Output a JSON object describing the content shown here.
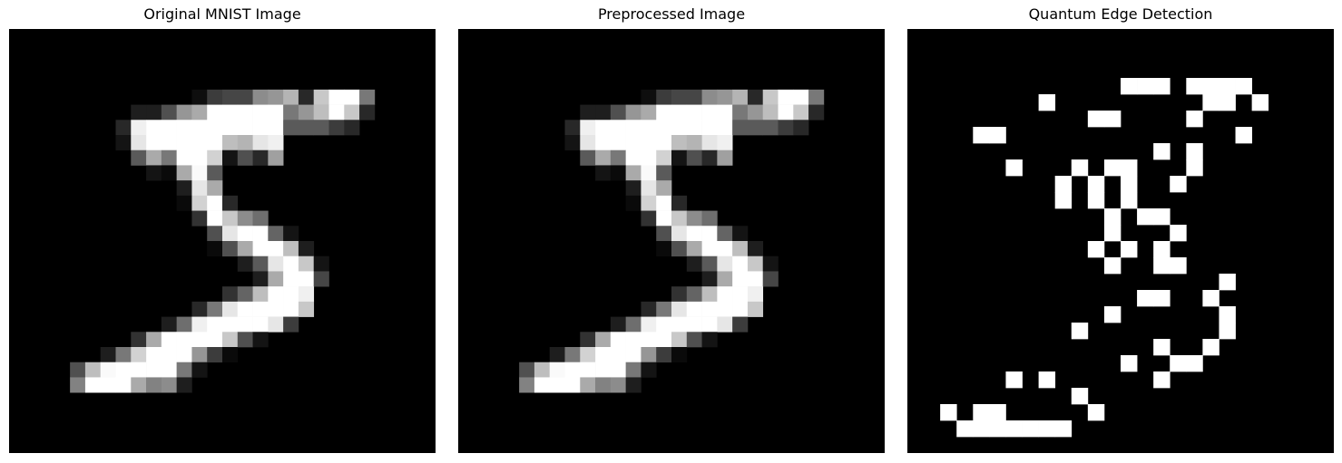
{
  "panels": [
    {
      "title": "Original MNIST Image",
      "kind": "grayscale",
      "grid_size": 28,
      "pixels": [
        [
          4,
          12,
          14,
          0
        ],
        [
          4,
          13,
          60,
          0
        ],
        [
          4,
          14,
          70,
          0
        ],
        [
          4,
          15,
          70,
          0
        ],
        [
          4,
          16,
          140,
          0
        ],
        [
          4,
          17,
          150,
          0
        ],
        [
          4,
          18,
          180,
          0
        ],
        [
          4,
          19,
          40,
          0
        ],
        [
          4,
          20,
          200,
          0
        ],
        [
          4,
          21,
          255,
          0
        ],
        [
          4,
          22,
          255,
          0
        ],
        [
          4,
          23,
          120,
          0
        ],
        [
          5,
          8,
          30,
          0
        ],
        [
          5,
          9,
          30,
          0
        ],
        [
          5,
          10,
          80,
          0
        ],
        [
          5,
          11,
          150,
          0
        ],
        [
          5,
          12,
          170,
          0
        ],
        [
          5,
          13,
          255,
          0
        ],
        [
          5,
          14,
          255,
          0
        ],
        [
          5,
          15,
          255,
          0
        ],
        [
          5,
          16,
          255,
          0
        ],
        [
          5,
          17,
          255,
          0
        ],
        [
          5,
          18,
          120,
          0
        ],
        [
          5,
          19,
          150,
          0
        ],
        [
          5,
          20,
          190,
          0
        ],
        [
          5,
          21,
          255,
          0
        ],
        [
          5,
          22,
          200,
          0
        ],
        [
          5,
          23,
          40,
          0
        ],
        [
          6,
          7,
          40,
          0
        ],
        [
          6,
          8,
          240,
          0
        ],
        [
          6,
          9,
          255,
          0
        ],
        [
          6,
          10,
          255,
          0
        ],
        [
          6,
          11,
          255,
          0
        ],
        [
          6,
          12,
          255,
          0
        ],
        [
          6,
          13,
          255,
          0
        ],
        [
          6,
          14,
          255,
          0
        ],
        [
          6,
          15,
          255,
          0
        ],
        [
          6,
          16,
          255,
          0
        ],
        [
          6,
          17,
          255,
          0
        ],
        [
          6,
          18,
          90,
          0
        ],
        [
          6,
          19,
          90,
          0
        ],
        [
          6,
          20,
          90,
          0
        ],
        [
          6,
          21,
          60,
          0
        ],
        [
          6,
          22,
          40,
          0
        ],
        [
          7,
          7,
          20,
          0
        ],
        [
          7,
          8,
          230,
          0
        ],
        [
          7,
          9,
          255,
          0
        ],
        [
          7,
          10,
          255,
          0
        ],
        [
          7,
          11,
          255,
          0
        ],
        [
          7,
          12,
          255,
          0
        ],
        [
          7,
          13,
          255,
          0
        ],
        [
          7,
          14,
          190,
          0
        ],
        [
          7,
          15,
          180,
          0
        ],
        [
          7,
          16,
          230,
          0
        ],
        [
          7,
          17,
          240,
          0
        ],
        [
          8,
          8,
          90,
          0
        ],
        [
          8,
          9,
          170,
          0
        ],
        [
          8,
          10,
          120,
          0
        ],
        [
          8,
          11,
          255,
          0
        ],
        [
          8,
          12,
          255,
          0
        ],
        [
          8,
          13,
          210,
          0
        ],
        [
          8,
          14,
          20,
          0
        ],
        [
          8,
          15,
          80,
          0
        ],
        [
          8,
          16,
          40,
          0
        ],
        [
          8,
          17,
          160,
          0
        ],
        [
          9,
          9,
          20,
          0
        ],
        [
          9,
          10,
          10,
          0
        ],
        [
          9,
          11,
          170,
          0
        ],
        [
          9,
          12,
          250,
          0
        ],
        [
          9,
          13,
          90,
          0
        ],
        [
          10,
          11,
          30,
          0
        ],
        [
          10,
          12,
          230,
          0
        ],
        [
          10,
          13,
          170,
          0
        ],
        [
          11,
          11,
          10,
          0
        ],
        [
          11,
          12,
          210,
          0
        ],
        [
          11,
          13,
          255,
          0
        ],
        [
          11,
          14,
          40,
          0
        ],
        [
          12,
          12,
          50,
          0
        ],
        [
          12,
          13,
          255,
          0
        ],
        [
          12,
          14,
          200,
          0
        ],
        [
          12,
          15,
          140,
          0
        ],
        [
          12,
          16,
          110,
          0
        ],
        [
          13,
          13,
          80,
          0
        ],
        [
          13,
          14,
          230,
          0
        ],
        [
          13,
          15,
          255,
          0
        ],
        [
          13,
          16,
          255,
          0
        ],
        [
          13,
          17,
          100,
          0
        ],
        [
          13,
          18,
          20,
          0
        ],
        [
          14,
          13,
          10,
          0
        ],
        [
          14,
          14,
          80,
          0
        ],
        [
          14,
          15,
          170,
          0
        ],
        [
          14,
          16,
          255,
          0
        ],
        [
          14,
          17,
          255,
          0
        ],
        [
          14,
          18,
          190,
          0
        ],
        [
          14,
          19,
          30,
          0
        ],
        [
          15,
          15,
          30,
          0
        ],
        [
          15,
          16,
          90,
          0
        ],
        [
          15,
          17,
          230,
          0
        ],
        [
          15,
          18,
          255,
          0
        ],
        [
          15,
          19,
          200,
          0
        ],
        [
          15,
          20,
          20,
          0
        ],
        [
          16,
          16,
          30,
          0
        ],
        [
          16,
          17,
          170,
          0
        ],
        [
          16,
          18,
          255,
          0
        ],
        [
          16,
          19,
          255,
          0
        ],
        [
          16,
          20,
          70,
          0
        ],
        [
          17,
          14,
          50,
          0
        ],
        [
          17,
          15,
          100,
          0
        ],
        [
          17,
          16,
          190,
          0
        ],
        [
          17,
          17,
          255,
          0
        ],
        [
          17,
          18,
          255,
          0
        ],
        [
          17,
          19,
          240,
          0
        ],
        [
          18,
          12,
          40,
          0
        ],
        [
          18,
          13,
          120,
          0
        ],
        [
          18,
          14,
          230,
          0
        ],
        [
          18,
          15,
          255,
          0
        ],
        [
          18,
          16,
          255,
          0
        ],
        [
          18,
          17,
          255,
          0
        ],
        [
          18,
          18,
          255,
          0
        ],
        [
          18,
          19,
          200,
          0
        ],
        [
          19,
          10,
          30,
          0
        ],
        [
          19,
          11,
          110,
          0
        ],
        [
          19,
          12,
          240,
          0
        ],
        [
          19,
          13,
          255,
          0
        ],
        [
          19,
          14,
          255,
          0
        ],
        [
          19,
          15,
          255,
          0
        ],
        [
          19,
          16,
          255,
          0
        ],
        [
          19,
          17,
          230,
          0
        ],
        [
          19,
          18,
          60,
          0
        ],
        [
          20,
          8,
          50,
          0
        ],
        [
          20,
          9,
          170,
          0
        ],
        [
          20,
          10,
          255,
          0
        ],
        [
          20,
          11,
          255,
          0
        ],
        [
          20,
          12,
          255,
          0
        ],
        [
          20,
          13,
          255,
          0
        ],
        [
          20,
          14,
          200,
          0
        ],
        [
          20,
          15,
          80,
          0
        ],
        [
          20,
          16,
          20,
          0
        ],
        [
          21,
          6,
          30,
          0
        ],
        [
          21,
          7,
          120,
          0
        ],
        [
          21,
          8,
          210,
          0
        ],
        [
          21,
          9,
          255,
          0
        ],
        [
          21,
          10,
          255,
          0
        ],
        [
          21,
          11,
          255,
          0
        ],
        [
          21,
          12,
          150,
          0
        ],
        [
          21,
          13,
          60,
          0
        ],
        [
          21,
          14,
          10,
          0
        ],
        [
          22,
          4,
          80,
          0
        ],
        [
          22,
          5,
          190,
          0
        ],
        [
          22,
          6,
          250,
          0
        ],
        [
          22,
          7,
          255,
          0
        ],
        [
          22,
          8,
          255,
          0
        ],
        [
          22,
          9,
          255,
          0
        ],
        [
          22,
          10,
          255,
          0
        ],
        [
          22,
          11,
          120,
          0
        ],
        [
          22,
          12,
          20,
          0
        ],
        [
          23,
          4,
          130,
          0
        ],
        [
          23,
          5,
          255,
          0
        ],
        [
          23,
          6,
          255,
          0
        ],
        [
          23,
          7,
          255,
          0
        ],
        [
          23,
          8,
          170,
          0
        ],
        [
          23,
          9,
          130,
          0
        ],
        [
          23,
          10,
          140,
          0
        ],
        [
          23,
          11,
          30,
          0
        ]
      ]
    },
    {
      "title": "Preprocessed Image",
      "kind": "grayscale",
      "grid_size": 28,
      "same_as_panel": 0
    },
    {
      "title": "Quantum Edge Detection",
      "kind": "binary",
      "grid_size": 26,
      "pixels": [
        [
          3,
          13
        ],
        [
          3,
          14
        ],
        [
          3,
          15
        ],
        [
          3,
          17
        ],
        [
          3,
          18
        ],
        [
          3,
          19
        ],
        [
          3,
          20
        ],
        [
          4,
          8
        ],
        [
          4,
          18
        ],
        [
          4,
          19
        ],
        [
          4,
          21
        ],
        [
          5,
          11
        ],
        [
          5,
          12
        ],
        [
          5,
          17
        ],
        [
          6,
          4
        ],
        [
          6,
          5
        ],
        [
          6,
          20
        ],
        [
          7,
          15
        ],
        [
          7,
          17
        ],
        [
          8,
          6
        ],
        [
          8,
          10
        ],
        [
          8,
          12
        ],
        [
          8,
          13
        ],
        [
          8,
          17
        ],
        [
          9,
          9
        ],
        [
          9,
          11
        ],
        [
          9,
          13
        ],
        [
          9,
          16
        ],
        [
          10,
          9
        ],
        [
          10,
          11
        ],
        [
          10,
          13
        ],
        [
          11,
          12
        ],
        [
          11,
          14
        ],
        [
          11,
          15
        ],
        [
          12,
          12
        ],
        [
          12,
          16
        ],
        [
          13,
          11
        ],
        [
          13,
          13
        ],
        [
          13,
          15
        ],
        [
          14,
          12
        ],
        [
          14,
          15
        ],
        [
          14,
          16
        ],
        [
          15,
          19
        ],
        [
          16,
          14
        ],
        [
          16,
          15
        ],
        [
          16,
          18
        ],
        [
          17,
          12
        ],
        [
          17,
          19
        ],
        [
          18,
          10
        ],
        [
          18,
          19
        ],
        [
          19,
          15
        ],
        [
          19,
          18
        ],
        [
          20,
          13
        ],
        [
          20,
          16
        ],
        [
          20,
          17
        ],
        [
          21,
          6
        ],
        [
          21,
          8
        ],
        [
          21,
          15
        ],
        [
          22,
          10
        ],
        [
          23,
          2
        ],
        [
          23,
          4
        ],
        [
          23,
          5
        ],
        [
          23,
          11
        ],
        [
          24,
          3
        ],
        [
          24,
          4
        ],
        [
          24,
          5
        ],
        [
          24,
          6
        ],
        [
          24,
          7
        ],
        [
          24,
          8
        ],
        [
          24,
          9
        ]
      ]
    }
  ]
}
